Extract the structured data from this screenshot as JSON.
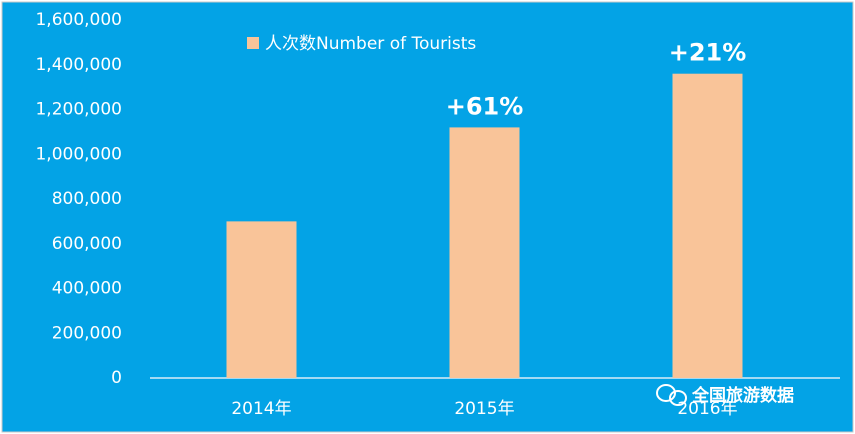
{
  "chart_data": {
    "type": "bar",
    "legend_label": "人次数Number of Tourists",
    "categories": [
      "2014年",
      "2015年",
      "2016年"
    ],
    "values": [
      700000,
      1120000,
      1360000
    ],
    "color": "#f9c499",
    "background": "#03a3e6",
    "ylim": [
      0,
      1600000
    ],
    "yticks": [
      {
        "value": 0,
        "label": "0"
      },
      {
        "value": 200000,
        "label": "200,000"
      },
      {
        "value": 400000,
        "label": "400,000"
      },
      {
        "value": 600000,
        "label": "600,000"
      },
      {
        "value": 800000,
        "label": "800,000"
      },
      {
        "value": 1000000,
        "label": "1,000,000"
      },
      {
        "value": 1200000,
        "label": "1,200,000"
      },
      {
        "value": 1400000,
        "label": "1,400,000"
      },
      {
        "value": 1600000,
        "label": "1,600,000"
      }
    ],
    "annotations": [
      {
        "category": "2015年",
        "text": "+61%"
      },
      {
        "category": "2016年",
        "text": "+21%"
      }
    ],
    "watermark": "全国旅游数据"
  }
}
